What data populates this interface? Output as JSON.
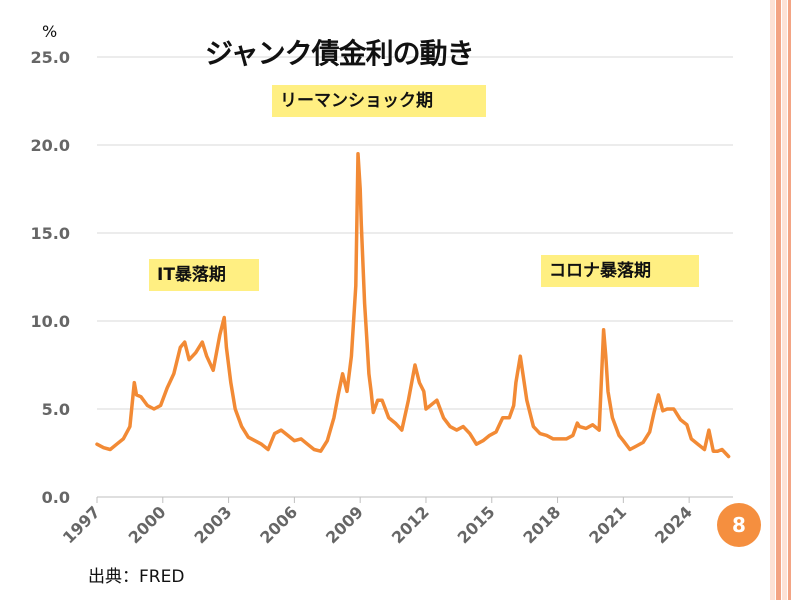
{
  "page": {
    "title": "ジャンク債金利の動き",
    "unit": "%",
    "source": "出典：FRED",
    "page_number": "8"
  },
  "colors": {
    "series": "#f28a35",
    "highlight": "#ffef82",
    "stripe_light": "#fde2d6",
    "stripe_dark": "#f3a585",
    "badge": "#f58f3f"
  },
  "chart_data": {
    "type": "line",
    "title": "ジャンク債金利の動き",
    "ylabel": "%",
    "xlabel": "",
    "ylim": [
      0,
      25
    ],
    "xlim": [
      1997,
      2026
    ],
    "y_ticks": [
      "0.0",
      "5.0",
      "10.0",
      "15.0",
      "20.0",
      "25.0"
    ],
    "y_tick_values": [
      0,
      5,
      10,
      15,
      20,
      25
    ],
    "x_ticks": [
      "1997",
      "2000",
      "2003",
      "2006",
      "2009",
      "2012",
      "2015",
      "2018",
      "2021",
      "2024"
    ],
    "x_tick_values": [
      1997,
      2000,
      2003,
      2006,
      2009,
      2012,
      2015,
      2018,
      2021,
      2024
    ],
    "grid": true,
    "annotations": [
      {
        "text": "IT暴落期"
      },
      {
        "text": "リーマンショック期"
      },
      {
        "text": "コロナ暴落期"
      }
    ],
    "series": [
      {
        "x": [
          1997.0,
          1997.3,
          1997.6,
          1997.9,
          1998.2,
          1998.5,
          1998.7,
          1998.8,
          1999.0,
          1999.3,
          1999.6,
          1999.9,
          2000.2,
          2000.5,
          2000.8,
          2001.0,
          2001.2,
          2001.5,
          2001.8,
          2002.0,
          2002.3,
          2002.6,
          2002.8,
          2002.9,
          2003.1,
          2003.3,
          2003.6,
          2003.9,
          2004.2,
          2004.5,
          2004.8,
          2005.1,
          2005.4,
          2005.7,
          2006.0,
          2006.3,
          2006.6,
          2006.9,
          2007.2,
          2007.5,
          2007.8,
          2008.0,
          2008.2,
          2008.4,
          2008.6,
          2008.8,
          2008.9,
          2009.0,
          2009.05,
          2009.1,
          2009.2,
          2009.3,
          2009.4,
          2009.5,
          2009.6,
          2009.8,
          2010.0,
          2010.3,
          2010.6,
          2010.9,
          2011.2,
          2011.5,
          2011.7,
          2011.9,
          2012.0,
          2012.2,
          2012.5,
          2012.8,
          2013.1,
          2013.4,
          2013.7,
          2014.0,
          2014.3,
          2014.6,
          2014.9,
          2015.2,
          2015.5,
          2015.8,
          2016.0,
          2016.1,
          2016.3,
          2016.6,
          2016.9,
          2017.2,
          2017.5,
          2017.8,
          2018.1,
          2018.4,
          2018.7,
          2018.9,
          2019.0,
          2019.3,
          2019.6,
          2019.9,
          2020.1,
          2020.2,
          2020.3,
          2020.5,
          2020.8,
          2021.0,
          2021.3,
          2021.6,
          2021.9,
          2022.2,
          2022.4,
          2022.6,
          2022.8,
          2023.0,
          2023.3,
          2023.6,
          2023.9,
          2024.1,
          2024.4,
          2024.7,
          2024.9,
          2025.1,
          2025.3,
          2025.5,
          2025.8
        ],
        "y": [
          3.0,
          2.8,
          2.7,
          3.0,
          3.3,
          4.0,
          6.5,
          5.8,
          5.7,
          5.2,
          5.0,
          5.2,
          6.2,
          7.0,
          8.5,
          8.8,
          7.8,
          8.2,
          8.8,
          8.0,
          7.2,
          9.2,
          10.2,
          8.5,
          6.5,
          5.0,
          4.0,
          3.4,
          3.2,
          3.0,
          2.7,
          3.6,
          3.8,
          3.5,
          3.2,
          3.3,
          3.0,
          2.7,
          2.6,
          3.2,
          4.5,
          5.8,
          7.0,
          6.0,
          8.0,
          12.0,
          19.5,
          17.5,
          15.5,
          14.0,
          11.0,
          9.0,
          7.0,
          6.0,
          4.8,
          5.5,
          5.5,
          4.5,
          4.2,
          3.8,
          5.5,
          7.5,
          6.5,
          6.0,
          5.0,
          5.2,
          5.5,
          4.5,
          4.0,
          3.8,
          4.0,
          3.6,
          3.0,
          3.2,
          3.5,
          3.7,
          4.5,
          4.5,
          5.2,
          6.5,
          8.0,
          5.5,
          4.0,
          3.6,
          3.5,
          3.3,
          3.3,
          3.3,
          3.5,
          4.2,
          4.0,
          3.9,
          4.1,
          3.8,
          9.5,
          8.0,
          6.0,
          4.5,
          3.5,
          3.2,
          2.7,
          2.9,
          3.1,
          3.7,
          4.8,
          5.8,
          4.9,
          5.0,
          5.0,
          4.4,
          4.1,
          3.3,
          3.0,
          2.7,
          3.8,
          2.6,
          2.6,
          2.7,
          2.3
        ]
      }
    ]
  }
}
